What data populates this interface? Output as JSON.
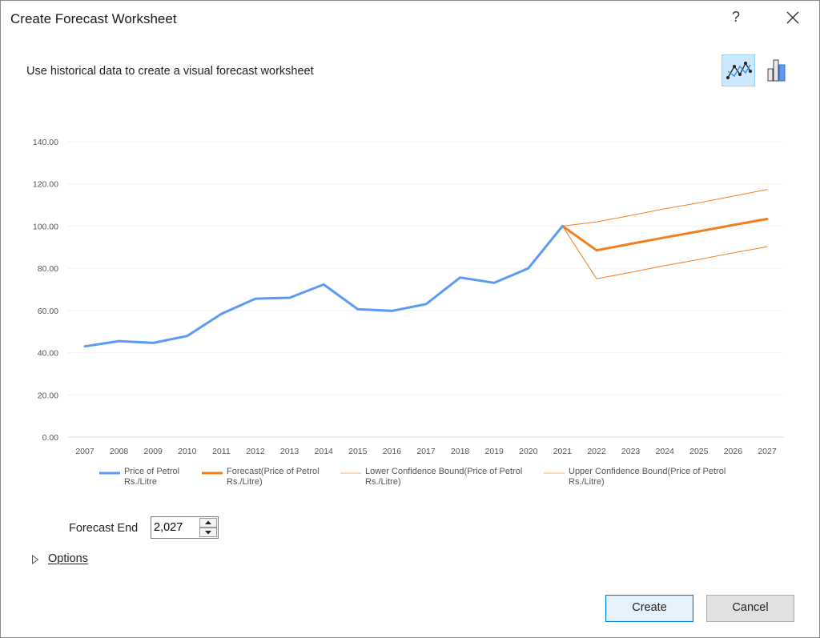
{
  "window": {
    "title": "Create Forecast Worksheet",
    "help_label": "?"
  },
  "subtitle": "Use historical data to create a visual forecast worksheet",
  "chart_type_buttons": {
    "selected": "line",
    "icons": [
      "line-chart-icon",
      "column-chart-icon"
    ]
  },
  "chart_data": {
    "type": "line",
    "x": [
      2007,
      2008,
      2009,
      2010,
      2011,
      2012,
      2013,
      2014,
      2015,
      2016,
      2017,
      2018,
      2019,
      2020,
      2021,
      2022,
      2023,
      2024,
      2025,
      2026,
      2027
    ],
    "y_ticks": [
      "0.00",
      "20.00",
      "40.00",
      "60.00",
      "80.00",
      "100.00",
      "120.00",
      "140.00"
    ],
    "ylim": [
      0,
      140
    ],
    "grid": true,
    "legend_position": "bottom",
    "series": [
      {
        "name": "Price of Petrol Rs./Litre",
        "color": "#5b9bf5",
        "width": 3,
        "x": [
          2007,
          2008,
          2009,
          2010,
          2011,
          2012,
          2013,
          2014,
          2015,
          2016,
          2017,
          2018,
          2019,
          2020,
          2021
        ],
        "values": [
          43.0,
          45.5,
          44.6,
          47.9,
          58.4,
          65.6,
          66.0,
          72.3,
          60.6,
          59.8,
          63.0,
          75.6,
          73.1,
          80.0,
          100.0
        ]
      },
      {
        "name": "Forecast(Price of Petrol Rs./Litre)",
        "color": "#f07f1f",
        "width": 3,
        "x": [
          2021,
          2022,
          2023,
          2024,
          2025,
          2026,
          2027
        ],
        "values": [
          100.0,
          88.5,
          91.6,
          94.6,
          97.5,
          100.5,
          103.4
        ]
      },
      {
        "name": "Lower Confidence Bound(Price of Petrol Rs./Litre)",
        "color": "#f07f1f",
        "width": 1,
        "x": [
          2021,
          2022,
          2023,
          2024,
          2025,
          2026,
          2027
        ],
        "values": [
          100.0,
          75.0,
          78.1,
          81.3,
          84.2,
          87.3,
          90.2
        ]
      },
      {
        "name": "Upper Confidence Bound(Price of Petrol Rs./Litre)",
        "color": "#f07f1f",
        "width": 1,
        "x": [
          2021,
          2022,
          2023,
          2024,
          2025,
          2026,
          2027
        ],
        "values": [
          100.0,
          102.0,
          105.0,
          108.2,
          111.0,
          114.2,
          117.3
        ]
      }
    ]
  },
  "legend": [
    {
      "line1": "Price of Petrol",
      "line2": "Rs./Litre",
      "color": "#5b9bf5",
      "width": 3
    },
    {
      "line1": "Forecast(Price of Petrol",
      "line2": "Rs./Litre)",
      "color": "#f07f1f",
      "width": 3
    },
    {
      "line1": "Lower Confidence Bound(Price of Petrol",
      "line2": "Rs./Litre)",
      "color": "#f7b27a",
      "width": 1
    },
    {
      "line1": "Upper Confidence Bound(Price of Petrol",
      "line2": "Rs./Litre)",
      "color": "#f7b27a",
      "width": 1
    }
  ],
  "forecast_end": {
    "label": "Forecast End",
    "value": "2,027"
  },
  "options": {
    "label": "Options"
  },
  "buttons": {
    "create": "Create",
    "cancel": "Cancel"
  }
}
